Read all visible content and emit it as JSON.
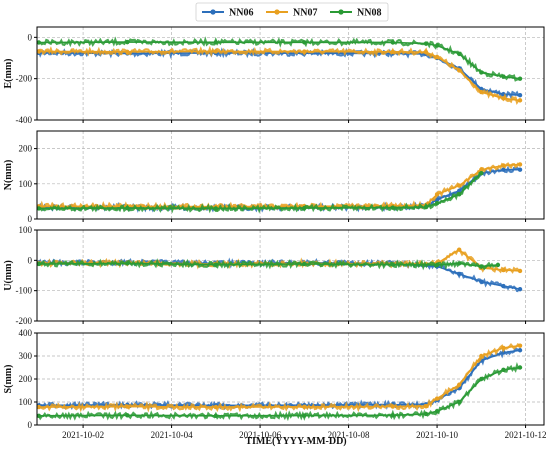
{
  "chart_data": {
    "type": "line",
    "xlabel": "TIME(YYYY-MM-DD)",
    "x_range": [
      "2021-09-30T23:00",
      "2021-10-12T10:00"
    ],
    "x_ticks": [
      "2021-10-02",
      "2021-10-04",
      "2021-10-06",
      "2021-10-08",
      "2021-10-10",
      "2021-10-12"
    ],
    "legend_placement": "top-center",
    "grid": true,
    "series_meta": [
      {
        "name": "NN06",
        "color": "#2c6fbb"
      },
      {
        "name": "NN07",
        "color": "#e8a020"
      },
      {
        "name": "NN08",
        "color": "#2a9a35"
      }
    ],
    "panels": [
      {
        "ylabel": "E(mm)",
        "ylim": [
          -400,
          50
        ],
        "yticks": [
          0,
          -200,
          -400
        ],
        "series": [
          {
            "name": "NN06",
            "points": [
              [
                "2021-10-01",
                -75
              ],
              [
                "2021-10-03",
                -78
              ],
              [
                "2021-10-05",
                -76
              ],
              [
                "2021-10-07",
                -77
              ],
              [
                "2021-10-09",
                -78
              ],
              [
                "2021-10-09T18:00",
                -80
              ],
              [
                "2021-10-10",
                -100
              ],
              [
                "2021-10-10T12:00",
                -150
              ],
              [
                "2021-10-11",
                -250
              ],
              [
                "2021-10-11T12:00",
                -275
              ],
              [
                "2021-10-11T21:00",
                -280
              ]
            ]
          },
          {
            "name": "NN07",
            "points": [
              [
                "2021-10-01",
                -68
              ],
              [
                "2021-10-03",
                -70
              ],
              [
                "2021-10-05",
                -68
              ],
              [
                "2021-10-07",
                -69
              ],
              [
                "2021-10-09",
                -70
              ],
              [
                "2021-10-09T18:00",
                -72
              ],
              [
                "2021-10-10",
                -95
              ],
              [
                "2021-10-10T12:00",
                -160
              ],
              [
                "2021-10-11",
                -265
              ],
              [
                "2021-10-11T12:00",
                -295
              ],
              [
                "2021-10-11T21:00",
                -305
              ]
            ]
          },
          {
            "name": "NN08",
            "points": [
              [
                "2021-10-01",
                -25
              ],
              [
                "2021-10-03",
                -23
              ],
              [
                "2021-10-05",
                -24
              ],
              [
                "2021-10-07",
                -24
              ],
              [
                "2021-10-09",
                -25
              ],
              [
                "2021-10-09T18:00",
                -30
              ],
              [
                "2021-10-10",
                -40
              ],
              [
                "2021-10-10T12:00",
                -80
              ],
              [
                "2021-10-11",
                -170
              ],
              [
                "2021-10-11T12:00",
                -190
              ],
              [
                "2021-10-11T21:00",
                -200
              ]
            ]
          }
        ]
      },
      {
        "ylabel": "N(mm)",
        "ylim": [
          0,
          250
        ],
        "yticks": [
          0,
          100,
          200
        ],
        "series": [
          {
            "name": "NN06",
            "points": [
              [
                "2021-10-01",
                33
              ],
              [
                "2021-10-03",
                33
              ],
              [
                "2021-10-05",
                32
              ],
              [
                "2021-10-07",
                33
              ],
              [
                "2021-10-09",
                34
              ],
              [
                "2021-10-09T18:00",
                36
              ],
              [
                "2021-10-10",
                55
              ],
              [
                "2021-10-10T12:00",
                80
              ],
              [
                "2021-10-11",
                130
              ],
              [
                "2021-10-11T12:00",
                140
              ],
              [
                "2021-10-11T21:00",
                140
              ]
            ]
          },
          {
            "name": "NN07",
            "points": [
              [
                "2021-10-01",
                36
              ],
              [
                "2021-10-03",
                36
              ],
              [
                "2021-10-05",
                35
              ],
              [
                "2021-10-07",
                36
              ],
              [
                "2021-10-09",
                37
              ],
              [
                "2021-10-09T18:00",
                40
              ],
              [
                "2021-10-10",
                70
              ],
              [
                "2021-10-10T12:00",
                95
              ],
              [
                "2021-10-11",
                140
              ],
              [
                "2021-10-11T12:00",
                152
              ],
              [
                "2021-10-11T21:00",
                155
              ]
            ]
          },
          {
            "name": "NN08",
            "points": [
              [
                "2021-10-01",
                30
              ],
              [
                "2021-10-03",
                31
              ],
              [
                "2021-10-05",
                30
              ],
              [
                "2021-10-07",
                31
              ],
              [
                "2021-10-09",
                32
              ],
              [
                "2021-10-09T18:00",
                34
              ],
              [
                "2021-10-10",
                45
              ],
              [
                "2021-10-10T12:00",
                70
              ],
              [
                "2021-10-11",
                130
              ]
            ]
          }
        ]
      },
      {
        "ylabel": "U(mm)",
        "ylim": [
          -200,
          100
        ],
        "yticks": [
          100,
          0,
          -100,
          -200
        ],
        "series": [
          {
            "name": "NN06",
            "points": [
              [
                "2021-10-01",
                -8
              ],
              [
                "2021-10-03",
                -6
              ],
              [
                "2021-10-05",
                -10
              ],
              [
                "2021-10-07",
                -8
              ],
              [
                "2021-10-09",
                -10
              ],
              [
                "2021-10-10",
                -20
              ],
              [
                "2021-10-10T12:00",
                -45
              ],
              [
                "2021-10-11",
                -70
              ],
              [
                "2021-10-11T12:00",
                -85
              ],
              [
                "2021-10-11T21:00",
                -95
              ]
            ]
          },
          {
            "name": "NN07",
            "points": [
              [
                "2021-10-01",
                -10
              ],
              [
                "2021-10-03",
                -8
              ],
              [
                "2021-10-05",
                -12
              ],
              [
                "2021-10-07",
                -10
              ],
              [
                "2021-10-09",
                -12
              ],
              [
                "2021-10-10",
                -10
              ],
              [
                "2021-10-10T12:00",
                35
              ],
              [
                "2021-10-11",
                -25
              ],
              [
                "2021-10-11T12:00",
                -32
              ],
              [
                "2021-10-11T21:00",
                -35
              ]
            ]
          },
          {
            "name": "NN08",
            "points": [
              [
                "2021-10-01",
                -12
              ],
              [
                "2021-10-03",
                -10
              ],
              [
                "2021-10-05",
                -14
              ],
              [
                "2021-10-07",
                -12
              ],
              [
                "2021-10-09",
                -14
              ],
              [
                "2021-10-10",
                -15
              ],
              [
                "2021-10-10T12:00",
                -10
              ],
              [
                "2021-10-11",
                -20
              ],
              [
                "2021-10-11T09:00",
                -15
              ]
            ]
          }
        ]
      },
      {
        "ylabel": "S(mm)",
        "ylim": [
          0,
          400
        ],
        "yticks": [
          0,
          100,
          200,
          300,
          400
        ],
        "series": [
          {
            "name": "NN06",
            "points": [
              [
                "2021-10-01",
                85
              ],
              [
                "2021-10-03",
                88
              ],
              [
                "2021-10-05",
                85
              ],
              [
                "2021-10-07",
                86
              ],
              [
                "2021-10-09",
                88
              ],
              [
                "2021-10-09T18:00",
                90
              ],
              [
                "2021-10-10",
                110
              ],
              [
                "2021-10-10T12:00",
                160
              ],
              [
                "2021-10-11",
                280
              ],
              [
                "2021-10-11T12:00",
                315
              ],
              [
                "2021-10-11T21:00",
                325
              ]
            ]
          },
          {
            "name": "NN07",
            "points": [
              [
                "2021-10-01",
                78
              ],
              [
                "2021-10-03",
                80
              ],
              [
                "2021-10-05",
                78
              ],
              [
                "2021-10-07",
                79
              ],
              [
                "2021-10-09",
                80
              ],
              [
                "2021-10-09T18:00",
                82
              ],
              [
                "2021-10-10",
                115
              ],
              [
                "2021-10-10T12:00",
                175
              ],
              [
                "2021-10-11",
                300
              ],
              [
                "2021-10-11T12:00",
                335
              ],
              [
                "2021-10-11T21:00",
                345
              ]
            ]
          },
          {
            "name": "NN08",
            "points": [
              [
                "2021-10-01",
                40
              ],
              [
                "2021-10-03",
                42
              ],
              [
                "2021-10-05",
                40
              ],
              [
                "2021-10-07",
                41
              ],
              [
                "2021-10-09",
                42
              ],
              [
                "2021-10-09T18:00",
                48
              ],
              [
                "2021-10-10",
                60
              ],
              [
                "2021-10-10T12:00",
                100
              ],
              [
                "2021-10-11",
                200
              ],
              [
                "2021-10-11T12:00",
                240
              ],
              [
                "2021-10-11T21:00",
                250
              ]
            ]
          }
        ]
      }
    ]
  }
}
